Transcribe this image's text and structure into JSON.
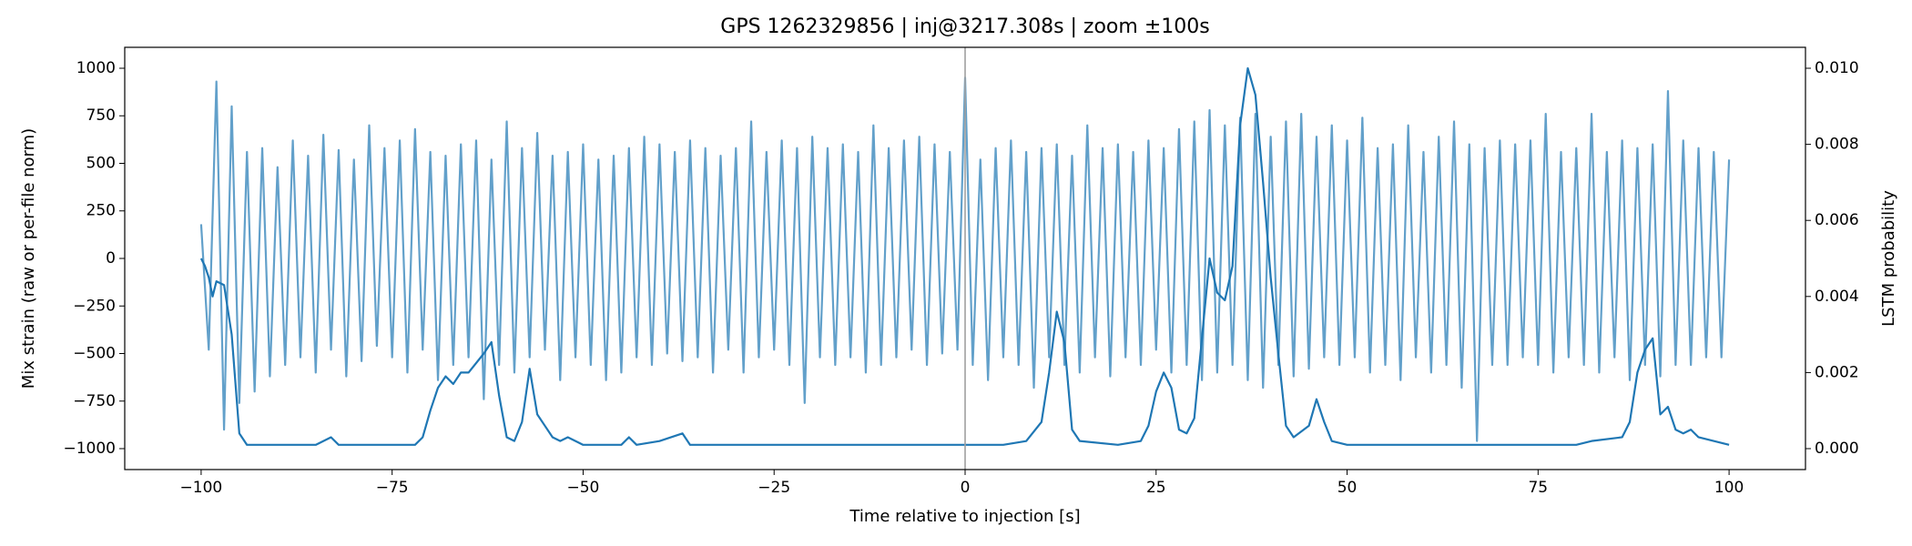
{
  "chart_data": {
    "type": "line",
    "title": "GPS 1262329856 | inj@3217.308s | zoom ±100s",
    "x_label": "Time relative to injection [s]",
    "y_label": "Mix strain (raw or per-file norm)",
    "y2_label": "LSTM probability",
    "xlim": [
      -110,
      110
    ],
    "ylim": [
      -1110,
      1110
    ],
    "y2lim": [
      -0.00055,
      0.01055
    ],
    "xticks": [
      {
        "value": -100,
        "label": "−100"
      },
      {
        "value": -75,
        "label": "−75"
      },
      {
        "value": -50,
        "label": "−50"
      },
      {
        "value": -25,
        "label": "−25"
      },
      0,
      25,
      50,
      75,
      100
    ],
    "yticks": [
      {
        "value": -1000,
        "label": "−1000"
      },
      {
        "value": -750,
        "label": "−750"
      },
      {
        "value": -500,
        "label": "−500"
      },
      {
        "value": -250,
        "label": "−250"
      },
      0,
      250,
      500,
      750,
      1000
    ],
    "y2ticks": [
      {
        "value": 0,
        "label": "0.000"
      },
      {
        "value": 0.002,
        "label": "0.002"
      },
      {
        "value": 0.004,
        "label": "0.004"
      },
      {
        "value": 0.006,
        "label": "0.006"
      },
      {
        "value": 0.008,
        "label": "0.008"
      },
      {
        "value": 0.01,
        "label": "0.010"
      }
    ],
    "injection_line_x": 0,
    "injection_line_color": "#a0a0a0",
    "series": [
      {
        "axis": "y",
        "color": "#1f77b4",
        "opacity": 0.7,
        "x": [
          -100,
          -99,
          -98,
          -97,
          -96,
          -95,
          -94,
          -93,
          -92,
          -91,
          -90,
          -89,
          -88,
          -87,
          -86,
          -85,
          -84,
          -83,
          -82,
          -81,
          -80,
          -79,
          -78,
          -77,
          -76,
          -75,
          -74,
          -73,
          -72,
          -71,
          -70,
          -69,
          -68,
          -67,
          -66,
          -65,
          -64,
          -63,
          -62,
          -61,
          -60,
          -59,
          -58,
          -57,
          -56,
          -55,
          -54,
          -53,
          -52,
          -51,
          -50,
          -49,
          -48,
          -47,
          -46,
          -45,
          -44,
          -43,
          -42,
          -41,
          -40,
          -39,
          -38,
          -37,
          -36,
          -35,
          -34,
          -33,
          -32,
          -31,
          -30,
          -29,
          -28,
          -27,
          -26,
          -25,
          -24,
          -23,
          -22,
          -21,
          -20,
          -19,
          -18,
          -17,
          -16,
          -15,
          -14,
          -13,
          -12,
          -11,
          -10,
          -9,
          -8,
          -7,
          -6,
          -5,
          -4,
          -3,
          -2,
          -1,
          0,
          1,
          2,
          3,
          4,
          5,
          6,
          7,
          8,
          9,
          10,
          11,
          12,
          13,
          14,
          15,
          16,
          17,
          18,
          19,
          20,
          21,
          22,
          23,
          24,
          25,
          26,
          27,
          28,
          29,
          30,
          31,
          32,
          33,
          34,
          35,
          36,
          37,
          38,
          39,
          40,
          41,
          42,
          43,
          44,
          45,
          46,
          47,
          48,
          49,
          50,
          51,
          52,
          53,
          54,
          55,
          56,
          57,
          58,
          59,
          60,
          61,
          62,
          63,
          64,
          65,
          66,
          67,
          68,
          69,
          70,
          71,
          72,
          73,
          74,
          75,
          76,
          77,
          78,
          79,
          80,
          81,
          82,
          83,
          84,
          85,
          86,
          87,
          88,
          89,
          90,
          91,
          92,
          93,
          94,
          95,
          96,
          97,
          98,
          99,
          100
        ],
        "values": [
          180,
          -480,
          930,
          -900,
          800,
          -760,
          560,
          -700,
          580,
          -620,
          480,
          -560,
          620,
          -520,
          540,
          -600,
          650,
          -480,
          570,
          -620,
          520,
          -540,
          700,
          -460,
          580,
          -520,
          620,
          -600,
          680,
          -480,
          560,
          -640,
          540,
          -560,
          600,
          -520,
          620,
          -740,
          520,
          -560,
          720,
          -600,
          580,
          -520,
          660,
          -480,
          540,
          -640,
          560,
          -520,
          600,
          -560,
          520,
          -640,
          540,
          -600,
          580,
          -520,
          640,
          -560,
          600,
          -500,
          560,
          -540,
          620,
          -520,
          580,
          -600,
          540,
          -480,
          580,
          -600,
          720,
          -520,
          560,
          -480,
          620,
          -560,
          580,
          -760,
          640,
          -520,
          580,
          -560,
          600,
          -520,
          560,
          -600,
          700,
          -560,
          580,
          -520,
          620,
          -480,
          640,
          -560,
          600,
          -500,
          560,
          -480,
          950,
          -560,
          520,
          -640,
          580,
          -520,
          620,
          -560,
          560,
          -680,
          580,
          -520,
          600,
          -560,
          540,
          -600,
          700,
          -520,
          580,
          -620,
          600,
          -520,
          560,
          -560,
          620,
          -480,
          580,
          -600,
          680,
          -560,
          720,
          -640,
          780,
          -600,
          700,
          -560,
          740,
          -640,
          760,
          -680,
          640,
          -560,
          720,
          -620,
          760,
          -580,
          640,
          -520,
          700,
          -560,
          620,
          -520,
          740,
          -600,
          580,
          -560,
          600,
          -640,
          700,
          -520,
          560,
          -600,
          640,
          -560,
          720,
          -680,
          600,
          -960,
          580,
          -560,
          620,
          -560,
          600,
          -520,
          620,
          -560,
          760,
          -600,
          560,
          -520,
          580,
          -560,
          760,
          -600,
          560,
          -520,
          620,
          -640,
          580,
          -560,
          600,
          -620,
          880,
          -560,
          620,
          -560,
          580,
          -520,
          560,
          -520,
          520
        ]
      },
      {
        "axis": "y2",
        "color": "#1f77b4",
        "opacity": 1,
        "x": [
          -100,
          -99.5,
          -99,
          -98.5,
          -98,
          -97,
          -96,
          -95,
          -94,
          -90,
          -85,
          -83,
          -82,
          -75,
          -72,
          -71,
          -70,
          -69,
          -68,
          -67,
          -66,
          -65,
          -63,
          -62,
          -61,
          -60,
          -59,
          -58,
          -57,
          -56,
          -55,
          -54,
          -53,
          -52,
          -50,
          -45,
          -44,
          -43,
          -40,
          -37,
          -36,
          -30,
          -20,
          -5,
          0,
          5,
          8,
          10,
          11,
          12,
          13,
          14,
          15,
          20,
          23,
          24,
          25,
          26,
          27,
          28,
          29,
          30,
          31,
          32,
          33,
          34,
          35,
          36,
          37,
          38,
          39,
          40,
          41,
          42,
          43,
          45,
          46,
          47,
          48,
          50,
          60,
          70,
          80,
          82,
          86,
          87,
          88,
          89,
          90,
          91,
          92,
          93,
          94,
          95,
          96,
          100
        ],
        "values": [
          0.005,
          0.0048,
          0.0045,
          0.004,
          0.0044,
          0.0043,
          0.003,
          0.0004,
          0.0001,
          0.0001,
          0.0001,
          0.0003,
          0.0001,
          0.0001,
          0.0001,
          0.0003,
          0.001,
          0.0016,
          0.0019,
          0.0017,
          0.002,
          0.002,
          0.0025,
          0.0028,
          0.0014,
          0.0003,
          0.0002,
          0.0007,
          0.0021,
          0.0009,
          0.0006,
          0.0003,
          0.0002,
          0.0003,
          0.0001,
          0.0001,
          0.0003,
          0.0001,
          0.0002,
          0.0004,
          0.0001,
          0.0001,
          0.0001,
          0.0001,
          0.0001,
          0.0001,
          0.0002,
          0.0007,
          0.002,
          0.0036,
          0.0028,
          0.0005,
          0.0002,
          0.0001,
          0.0002,
          0.0006,
          0.0015,
          0.002,
          0.0016,
          0.0005,
          0.0004,
          0.0008,
          0.0029,
          0.005,
          0.0041,
          0.0039,
          0.0048,
          0.0085,
          0.01,
          0.0093,
          0.007,
          0.0045,
          0.0025,
          0.0006,
          0.0003,
          0.0006,
          0.0013,
          0.0007,
          0.0002,
          0.0001,
          0.0001,
          0.0001,
          0.0001,
          0.0002,
          0.0003,
          0.0007,
          0.002,
          0.0026,
          0.0029,
          0.0009,
          0.0011,
          0.0005,
          0.0004,
          0.0005,
          0.0003,
          0.0001
        ]
      }
    ]
  }
}
